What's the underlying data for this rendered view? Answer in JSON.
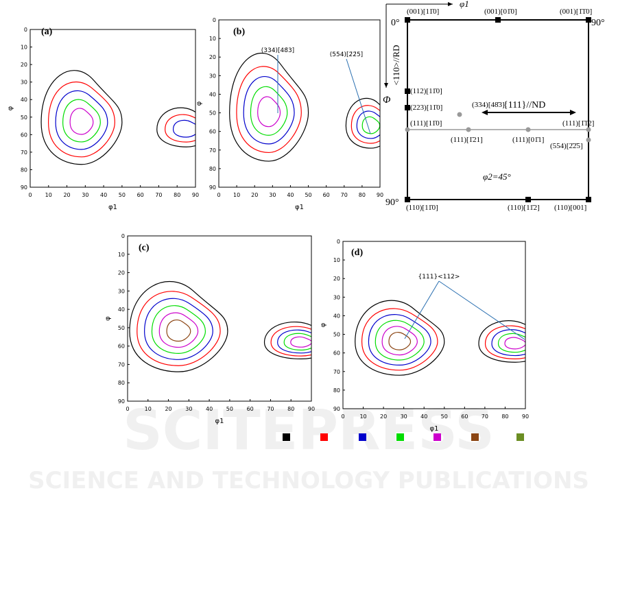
{
  "panels": [
    {
      "label": "(a)",
      "xlabel": "φ1",
      "ylabel": "φ",
      "xticks": [
        0,
        10,
        20,
        30,
        40,
        50,
        60,
        70,
        80,
        90
      ],
      "yticks": [
        0,
        10,
        20,
        30,
        40,
        50,
        60,
        70,
        80,
        90
      ]
    },
    {
      "label": "(b)",
      "xlabel": "φ1",
      "ylabel": "φ",
      "xticks": [
        0,
        10,
        20,
        30,
        40,
        50,
        60,
        70,
        80,
        90
      ],
      "yticks": [
        0,
        10,
        20,
        30,
        40,
        50,
        60,
        70,
        80,
        90
      ],
      "annotations": [
        "(334)[48̄3]",
        "(554)[2̄2̄5]"
      ]
    },
    {
      "label": "(c)",
      "xlabel": "φ1",
      "ylabel": "φ",
      "xticks": [
        0,
        10,
        20,
        30,
        40,
        50,
        60,
        70,
        80,
        90
      ],
      "yticks": [
        0,
        10,
        20,
        30,
        40,
        50,
        60,
        70,
        80,
        90
      ]
    },
    {
      "label": "(d)",
      "xlabel": "φ1",
      "ylabel": "φ",
      "xticks": [
        0,
        10,
        20,
        30,
        40,
        50,
        60,
        70,
        80,
        90
      ],
      "yticks": [
        0,
        10,
        20,
        30,
        40,
        50,
        60,
        70,
        80,
        90
      ],
      "annotations": [
        "{111}<112>"
      ]
    }
  ],
  "schematic": {
    "axis_top": "φ1",
    "axis_left": "Φ",
    "rd": "<110>//RD",
    "nd": "{111}//ND",
    "phi2": "φ2=45°",
    "corner_top_left": "0°",
    "corner_top_right": "90°",
    "corner_bottom_left": "90°",
    "orientations": [
      "(001)[11̄0]",
      "(001)[01̄0]",
      "(001)[1̄1̄0]",
      "(112)[11̄0]",
      "(223)[11̄0]",
      "(334)[48̄3]",
      "(111)[11̄0]",
      "(111)[1̄1̄2]",
      "(111)[1̄21]",
      "(111)[01̄1]",
      "(554)[2̄2̄5]",
      "(110)[11̄0]",
      "(110)[11̄2]",
      "(110)[001]"
    ]
  },
  "legend_colors": [
    "#000000",
    "#ff0000",
    "#0000cc",
    "#00dd00",
    "#cc00cc",
    "#8b4513",
    "#6b8e23"
  ],
  "watermark": {
    "line1": "SCITEPRESS",
    "line2": "SCIENCE AND TECHNOLOGY PUBLICATIONS"
  }
}
